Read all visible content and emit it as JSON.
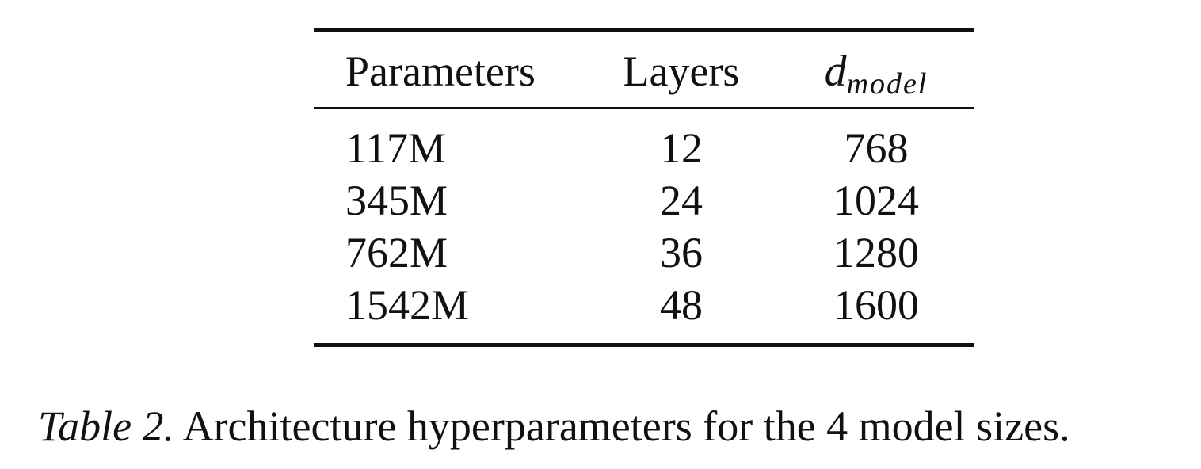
{
  "table": {
    "headers": {
      "parameters": "Parameters",
      "layers": "Layers",
      "dmodel_base": "d",
      "dmodel_sub": "model"
    },
    "rows": [
      {
        "parameters": "117M",
        "layers": "12",
        "dmodel": "768"
      },
      {
        "parameters": "345M",
        "layers": "24",
        "dmodel": "1024"
      },
      {
        "parameters": "762M",
        "layers": "36",
        "dmodel": "1280"
      },
      {
        "parameters": "1542M",
        "layers": "48",
        "dmodel": "1600"
      }
    ]
  },
  "caption": {
    "label": "Table 2.",
    "text": "Architecture hyperparameters for the 4 model sizes."
  }
}
